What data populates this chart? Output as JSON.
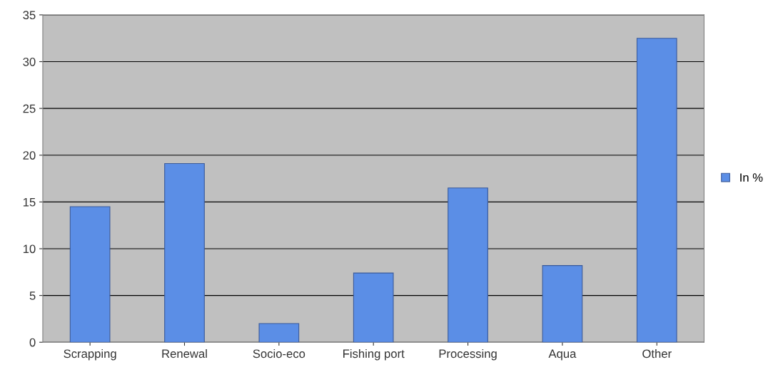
{
  "chart_data": {
    "type": "bar",
    "categories": [
      "Scrapping",
      "Renewal",
      "Socio-eco",
      "Fishing port",
      "Processing",
      "Aqua",
      "Other"
    ],
    "series": [
      {
        "name": "In %",
        "color": "#5b8ee6",
        "values": [
          14.5,
          19.1,
          2.0,
          7.4,
          16.5,
          8.2,
          32.5
        ]
      }
    ],
    "ylim": [
      0,
      35
    ],
    "yticks": [
      0,
      5,
      10,
      15,
      20,
      25,
      30,
      35
    ],
    "grid": "y",
    "legend": "right"
  }
}
